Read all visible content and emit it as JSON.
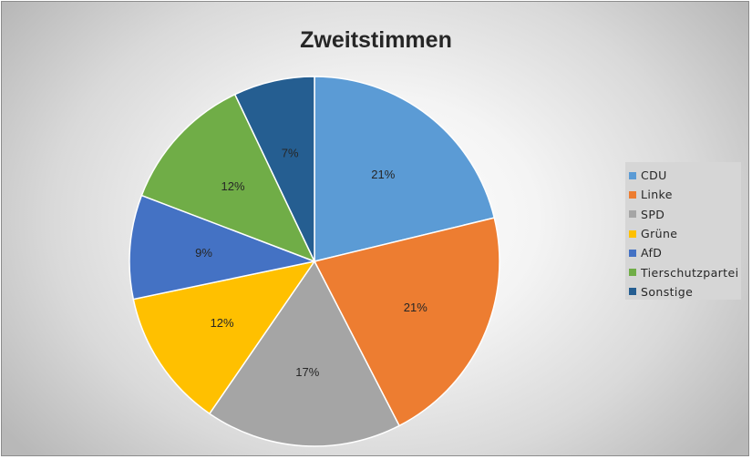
{
  "chart_data": {
    "type": "pie",
    "title": "Zweitstimmen",
    "categories": [
      "CDU",
      "Linke",
      "SPD",
      "Grüne",
      "AfD",
      "Tierschutzpartei",
      "Sonstige"
    ],
    "values": [
      21,
      21,
      17,
      12,
      9,
      12,
      7
    ],
    "labels": [
      "21%",
      "21%",
      "17%",
      "12%",
      "9%",
      "12%",
      "7%"
    ],
    "colors": [
      "#5b9bd5",
      "#ed7d31",
      "#a5a5a5",
      "#ffc000",
      "#4472c4",
      "#70ad47",
      "#255e91"
    ],
    "legend_position": "right"
  }
}
